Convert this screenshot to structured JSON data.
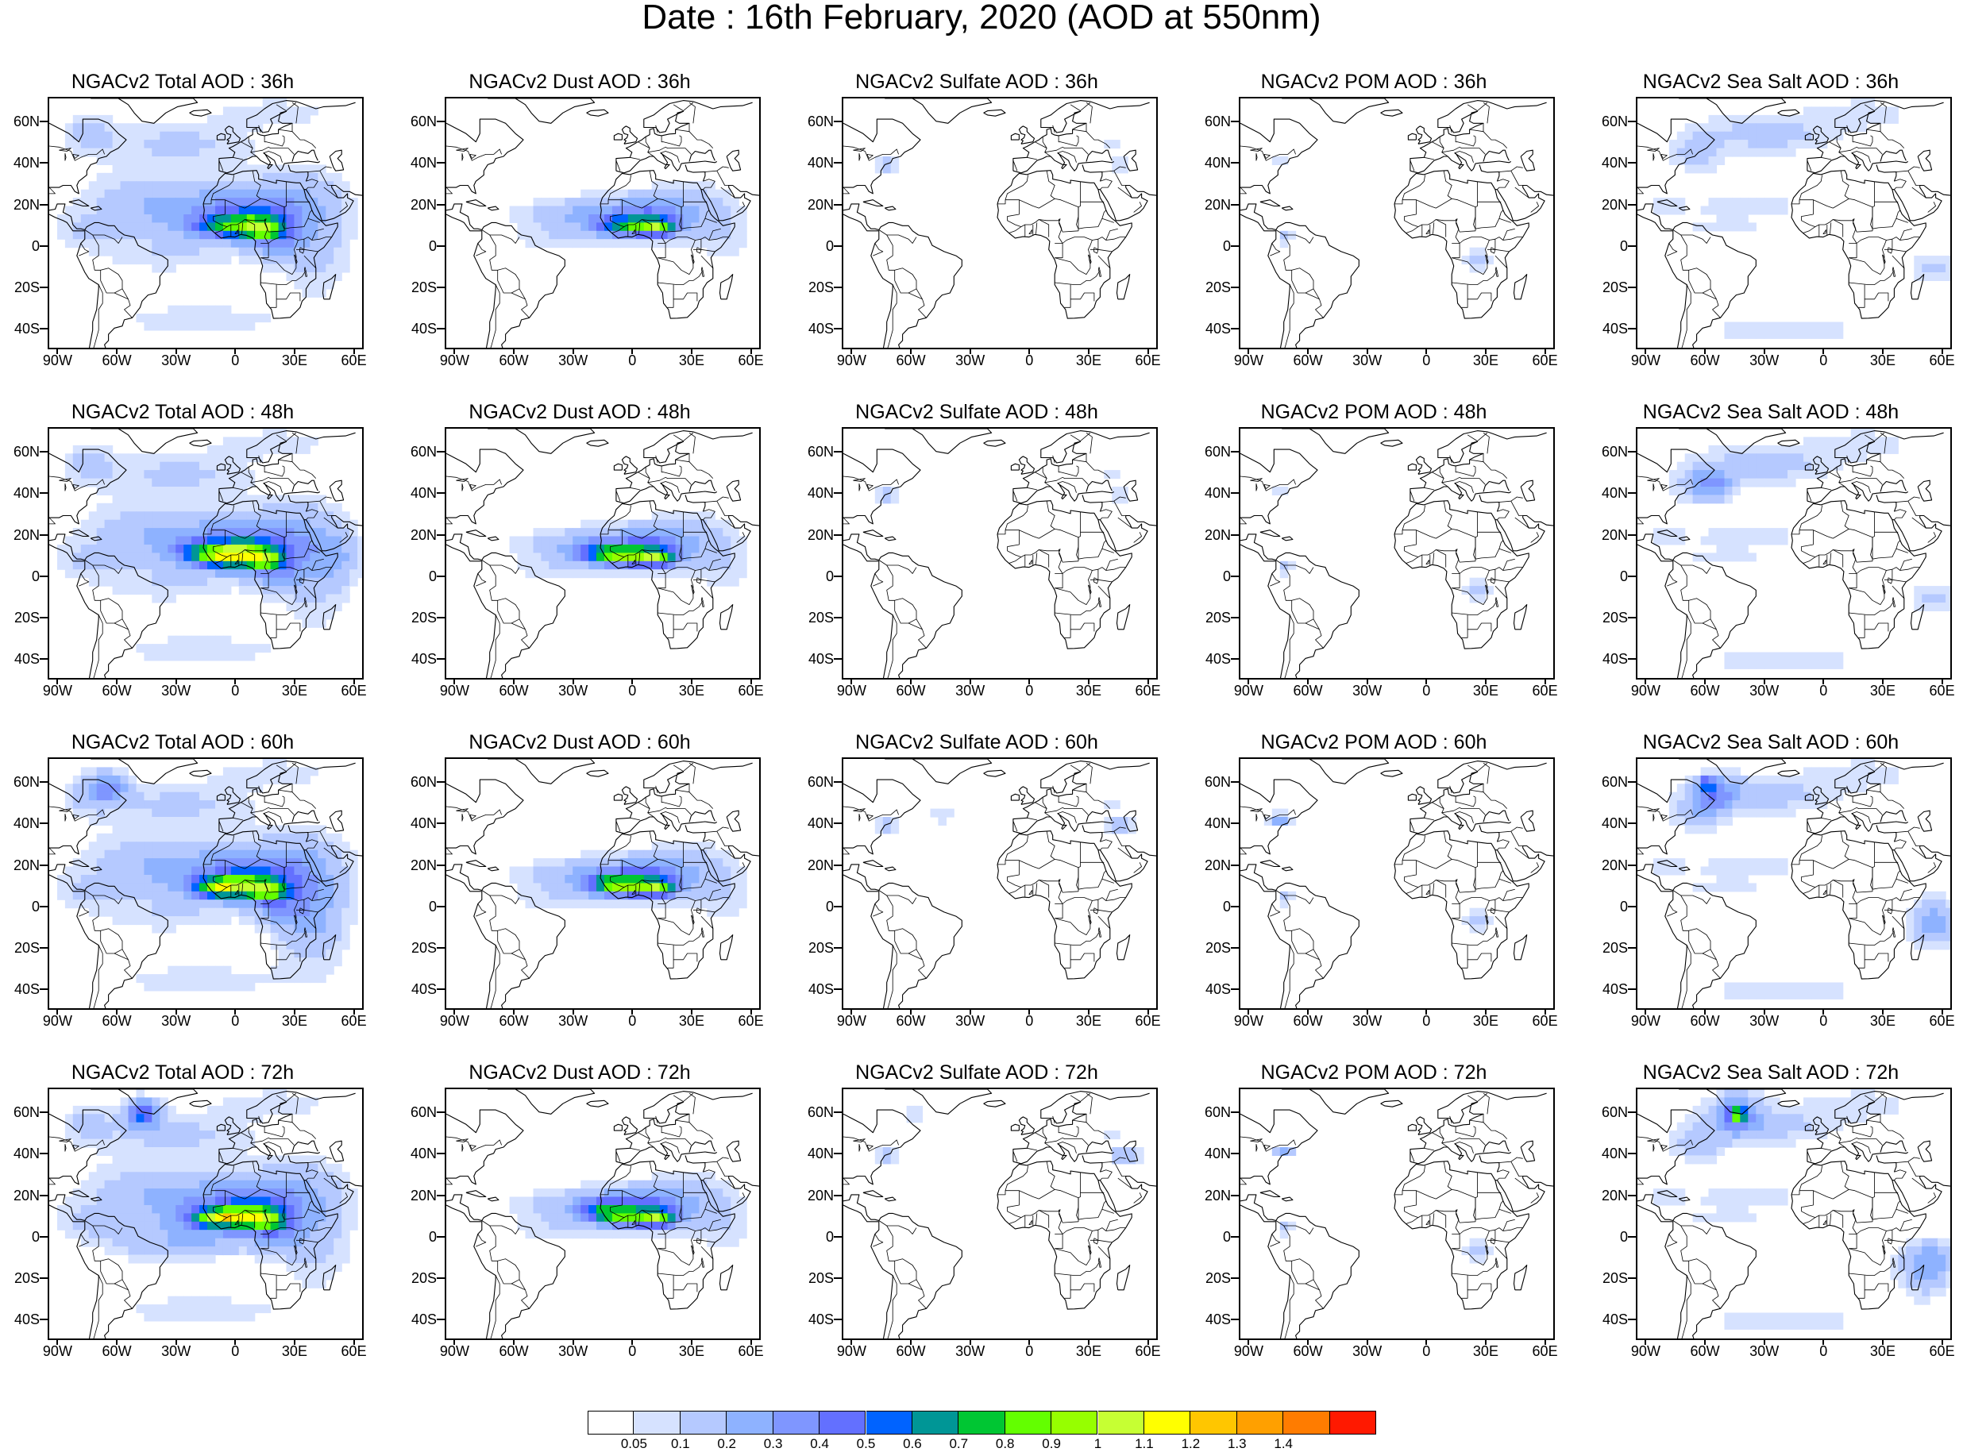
{
  "title": "Date : 16th February, 2020 (AOD at 550nm)",
  "map_axes": {
    "lat_ticks": [
      "60N",
      "40N",
      "20N",
      "0",
      "20S",
      "40S"
    ],
    "lon_ticks": [
      "90W",
      "60W",
      "30W",
      "0",
      "30E",
      "60E"
    ]
  },
  "panels": [
    {
      "title": "NGACv2 Total AOD : 36h",
      "species": "total",
      "forecast_hour": "36h"
    },
    {
      "title": "NGACv2 Dust AOD : 36h",
      "species": "dust",
      "forecast_hour": "36h"
    },
    {
      "title": "NGACv2 Sulfate AOD : 36h",
      "species": "sulfate",
      "forecast_hour": "36h"
    },
    {
      "title": "NGACv2 POM AOD : 36h",
      "species": "pom",
      "forecast_hour": "36h"
    },
    {
      "title": "NGACv2 Sea Salt AOD : 36h",
      "species": "seasalt",
      "forecast_hour": "36h"
    },
    {
      "title": "NGACv2 Total AOD : 48h",
      "species": "total",
      "forecast_hour": "48h"
    },
    {
      "title": "NGACv2 Dust AOD : 48h",
      "species": "dust",
      "forecast_hour": "48h"
    },
    {
      "title": "NGACv2 Sulfate AOD : 48h",
      "species": "sulfate",
      "forecast_hour": "48h"
    },
    {
      "title": "NGACv2 POM AOD : 48h",
      "species": "pom",
      "forecast_hour": "48h"
    },
    {
      "title": "NGACv2 Sea Salt AOD : 48h",
      "species": "seasalt",
      "forecast_hour": "48h"
    },
    {
      "title": "NGACv2 Total AOD : 60h",
      "species": "total",
      "forecast_hour": "60h"
    },
    {
      "title": "NGACv2 Dust AOD : 60h",
      "species": "dust",
      "forecast_hour": "60h"
    },
    {
      "title": "NGACv2 Sulfate AOD : 60h",
      "species": "sulfate",
      "forecast_hour": "60h"
    },
    {
      "title": "NGACv2 POM AOD : 60h",
      "species": "pom",
      "forecast_hour": "60h"
    },
    {
      "title": "NGACv2 Sea Salt AOD : 60h",
      "species": "seasalt",
      "forecast_hour": "60h"
    },
    {
      "title": "NGACv2 Total AOD : 72h",
      "species": "total",
      "forecast_hour": "72h"
    },
    {
      "title": "NGACv2 Dust AOD : 72h",
      "species": "dust",
      "forecast_hour": "72h"
    },
    {
      "title": "NGACv2 Sulfate AOD : 72h",
      "species": "sulfate",
      "forecast_hour": "72h"
    },
    {
      "title": "NGACv2 POM AOD : 72h",
      "species": "pom",
      "forecast_hour": "72h"
    },
    {
      "title": "NGACv2 Sea Salt  AOD : 72h",
      "species": "seasalt",
      "forecast_hour": "72h"
    }
  ],
  "colorbar": {
    "labels": [
      "0.05",
      "0.1",
      "0.2",
      "0.3",
      "0.4",
      "0.5",
      "0.6",
      "0.7",
      "0.8",
      "0.9",
      "1",
      "1.1",
      "1.2",
      "1.3",
      "1.4"
    ],
    "colors": [
      "#ffffff",
      "#d6e2ff",
      "#b5c9ff",
      "#8eb2ff",
      "#7f96ff",
      "#6370ff",
      "#0063ff",
      "#009696",
      "#00c633",
      "#63ff00",
      "#96ff00",
      "#c6ff33",
      "#ffff00",
      "#ffc600",
      "#ffa000",
      "#ff7c00",
      "#ff1900"
    ]
  }
}
